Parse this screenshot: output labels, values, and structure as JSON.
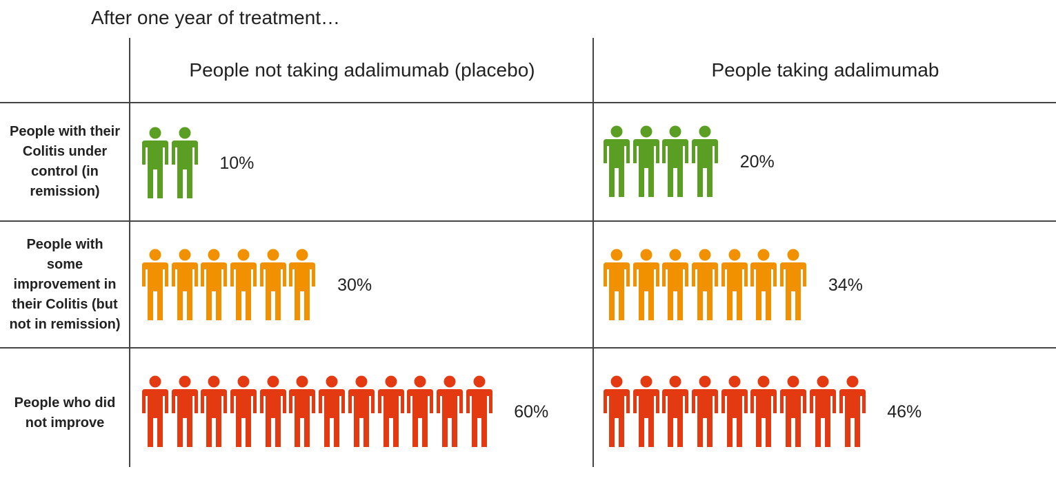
{
  "title": "After one year of treatment…",
  "chart_data": {
    "type": "table",
    "columns": [
      "People not taking adalimumab (placebo)",
      "People taking adalimumab"
    ],
    "rows": [
      {
        "label": "People with their Colitis under control (in remission)",
        "color": "#5a9e23",
        "icons": [
          2,
          4
        ],
        "values": [
          "10%",
          "20%"
        ]
      },
      {
        "label": "People with some improvement in their Colitis (but not in remission)",
        "color": "#f29100",
        "icons": [
          6,
          7
        ],
        "values": [
          "30%",
          "34%"
        ]
      },
      {
        "label": "People who did not improve",
        "color": "#e33a12",
        "icons": [
          12,
          9
        ],
        "values": [
          "60%",
          "46%"
        ]
      }
    ]
  }
}
